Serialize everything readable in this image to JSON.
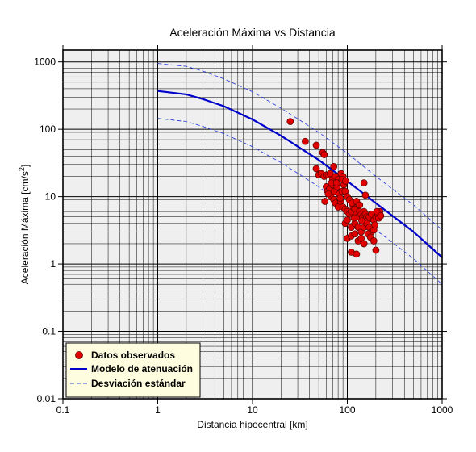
{
  "chart_data": {
    "type": "scatter",
    "title": "Aceleración Máxima vs Distancia",
    "xlabel": "Distancia hipocentral [km]",
    "ylabel_main": "Aceleración Máxima [cm/s",
    "ylabel_sup": "2",
    "ylabel_end": "]",
    "x_scale": "log",
    "y_scale": "log",
    "xlim": [
      0.1,
      1000
    ],
    "ylim": [
      0.01,
      1500
    ],
    "grid": true,
    "legend_position": "bottom-left",
    "x_ticks": [
      {
        "value": 0.1,
        "label": "0.1"
      },
      {
        "value": 1,
        "label": "1"
      },
      {
        "value": 10,
        "label": "10"
      },
      {
        "value": 100,
        "label": "100"
      },
      {
        "value": 1000,
        "label": "1000"
      }
    ],
    "y_ticks": [
      {
        "value": 0.01,
        "label": "0.01"
      },
      {
        "value": 0.1,
        "label": "0.1"
      },
      {
        "value": 1,
        "label": "1"
      },
      {
        "value": 10,
        "label": "10"
      },
      {
        "value": 100,
        "label": "100"
      },
      {
        "value": 1000,
        "label": "1000"
      }
    ],
    "series": [
      {
        "name": "Datos observados",
        "kind": "points",
        "color": "#e00000",
        "points": [
          [
            25,
            130
          ],
          [
            36,
            66
          ],
          [
            47,
            58
          ],
          [
            55,
            45
          ],
          [
            57,
            42
          ],
          [
            47,
            26
          ],
          [
            50,
            21
          ],
          [
            53,
            22
          ],
          [
            57,
            20
          ],
          [
            60,
            21
          ],
          [
            63,
            21
          ],
          [
            66,
            22
          ],
          [
            72,
            28
          ],
          [
            70,
            18
          ],
          [
            75,
            20
          ],
          [
            80,
            18
          ],
          [
            86,
            22
          ],
          [
            90,
            20
          ],
          [
            92,
            15
          ],
          [
            60,
            14
          ],
          [
            62,
            12
          ],
          [
            65,
            13
          ],
          [
            70,
            15
          ],
          [
            73,
            12
          ],
          [
            78,
            14
          ],
          [
            82,
            11
          ],
          [
            88,
            12
          ],
          [
            95,
            12
          ],
          [
            100,
            10
          ],
          [
            67,
            10
          ],
          [
            72,
            9
          ],
          [
            75,
            8
          ],
          [
            80,
            7
          ],
          [
            85,
            8.5
          ],
          [
            90,
            7
          ],
          [
            95,
            6.5
          ],
          [
            100,
            6
          ],
          [
            105,
            5.5
          ],
          [
            110,
            6
          ],
          [
            115,
            7
          ],
          [
            120,
            6.5
          ],
          [
            125,
            5.5
          ],
          [
            130,
            5
          ],
          [
            135,
            6
          ],
          [
            140,
            5.5
          ],
          [
            145,
            5
          ],
          [
            150,
            6
          ],
          [
            155,
            5.5
          ],
          [
            160,
            5
          ],
          [
            165,
            4.5
          ],
          [
            170,
            5
          ],
          [
            180,
            5.5
          ],
          [
            190,
            4.5
          ],
          [
            200,
            5
          ],
          [
            210,
            5.5
          ],
          [
            220,
            6
          ],
          [
            95,
            4
          ],
          [
            100,
            4.5
          ],
          [
            110,
            3.5
          ],
          [
            120,
            4
          ],
          [
            130,
            3.5
          ],
          [
            140,
            3
          ],
          [
            150,
            3.5
          ],
          [
            160,
            4
          ],
          [
            170,
            3.5
          ],
          [
            180,
            3
          ],
          [
            190,
            3.2
          ],
          [
            100,
            2.4
          ],
          [
            110,
            2.6
          ],
          [
            120,
            2.8
          ],
          [
            130,
            2.2
          ],
          [
            140,
            2.4
          ],
          [
            150,
            2
          ],
          [
            165,
            2.8
          ],
          [
            175,
            2.5
          ],
          [
            190,
            2.2
          ],
          [
            200,
            1.6
          ],
          [
            110,
            1.5
          ],
          [
            125,
            1.4
          ],
          [
            150,
            16
          ],
          [
            155,
            10.5
          ],
          [
            58,
            8.5
          ],
          [
            63,
            11
          ],
          [
            68,
            16
          ],
          [
            77,
            16
          ],
          [
            84,
            9.5
          ],
          [
            105,
            9
          ],
          [
            112,
            8
          ],
          [
            125,
            8.5
          ],
          [
            135,
            7.5
          ],
          [
            195,
            3.8
          ],
          [
            205,
            6
          ],
          [
            215,
            4.8
          ],
          [
            225,
            5.2
          ],
          [
            118,
            4.8
          ],
          [
            142,
            4.4
          ],
          [
            88,
            18
          ],
          [
            96,
            17
          ]
        ]
      },
      {
        "name": "Modelo de atenuación",
        "kind": "line",
        "color": "#0000cc",
        "style": "solid",
        "points": [
          [
            1,
            370
          ],
          [
            2,
            330
          ],
          [
            3,
            280
          ],
          [
            5,
            220
          ],
          [
            10,
            140
          ],
          [
            20,
            80
          ],
          [
            50,
            35
          ],
          [
            100,
            17
          ],
          [
            200,
            8
          ],
          [
            500,
            3
          ],
          [
            1000,
            1.25
          ]
        ]
      },
      {
        "name": "Desviación estándar",
        "kind": "line",
        "color": "#3344dd",
        "style": "dashed",
        "points": [
          [
            1,
            950
          ],
          [
            2,
            860
          ],
          [
            3,
            730
          ],
          [
            5,
            560
          ],
          [
            10,
            360
          ],
          [
            20,
            205
          ],
          [
            50,
            90
          ],
          [
            100,
            44
          ],
          [
            200,
            20
          ],
          [
            500,
            7.5
          ],
          [
            1000,
            3.2
          ]
        ]
      },
      {
        "name": "",
        "kind": "line",
        "color": "#3344dd",
        "style": "dashed",
        "points": [
          [
            1,
            145
          ],
          [
            2,
            130
          ],
          [
            3,
            110
          ],
          [
            5,
            86
          ],
          [
            10,
            55
          ],
          [
            20,
            32
          ],
          [
            50,
            14
          ],
          [
            100,
            6.7
          ],
          [
            200,
            3.2
          ],
          [
            500,
            1.2
          ],
          [
            1000,
            0.5
          ]
        ]
      }
    ],
    "legend": [
      {
        "label": "Datos observados",
        "marker": "dot",
        "color": "#e00000"
      },
      {
        "label": "Modelo de atenuación",
        "marker": "solid-line",
        "color": "#0000cc"
      },
      {
        "label": "Desviación estándar",
        "marker": "dashed-line",
        "color": "#3344dd"
      }
    ],
    "colors": {
      "plot_background": "#efefef",
      "legend_background": "#fffddf",
      "grid": "#000000"
    }
  }
}
